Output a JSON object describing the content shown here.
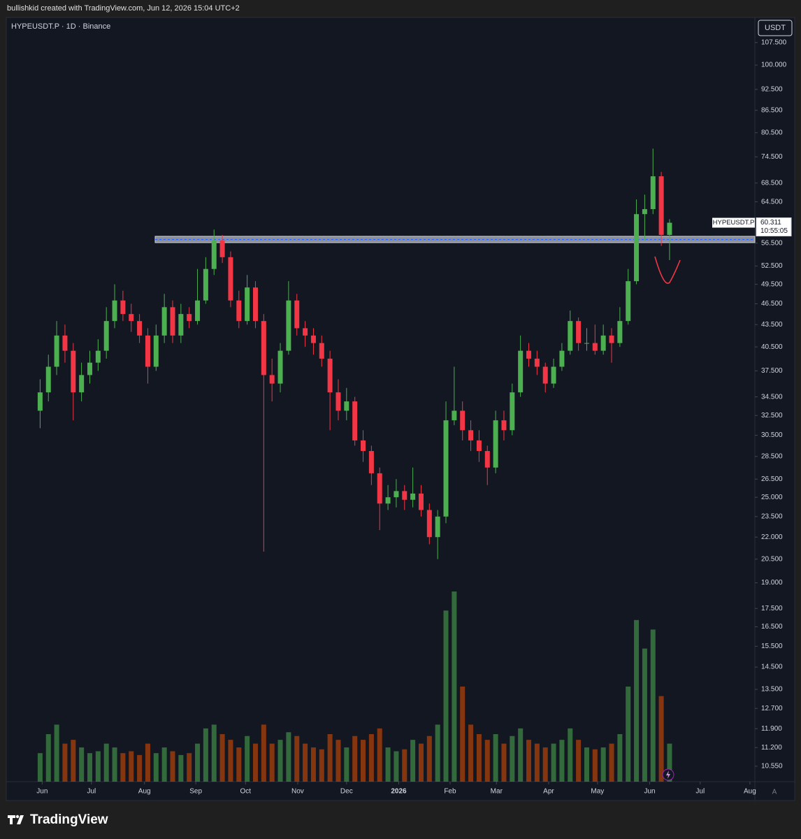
{
  "header": {
    "credit": "bullishkid created with TradingView.com, Jun 12, 2026 15:04 UTC+2"
  },
  "footer": {
    "brand": "TradingView"
  },
  "chart_data": {
    "type": "candlestick",
    "title": "HYPEUSDT.P · 1D · Binance",
    "currency": "USDT",
    "tag_symbol": "HYPEUSDT.P",
    "countdown": "10:55:05",
    "scale_button": "A",
    "up_color": "#4caf50",
    "down_color": "#f23645",
    "log_scale": true,
    "open": [
      33,
      35,
      38,
      42,
      40,
      35,
      37,
      38.5,
      40,
      44,
      47,
      45,
      44,
      42,
      38,
      42,
      46,
      42,
      45,
      44,
      47,
      52,
      57,
      54,
      47,
      44,
      49,
      44,
      37,
      36,
      40,
      47,
      43,
      42,
      41,
      39,
      35,
      33,
      34,
      30,
      29,
      27,
      24.5,
      25,
      25.5,
      24.8,
      25.3,
      24,
      22,
      23.5,
      32,
      33,
      31,
      30,
      29,
      27.5,
      32,
      31,
      35,
      40,
      39,
      38,
      36,
      38,
      40,
      44,
      41,
      41,
      40,
      42,
      41,
      44,
      50,
      62,
      63,
      70,
      58
    ],
    "high": [
      36.5,
      39.5,
      44,
      43.5,
      41,
      38.5,
      40,
      41.5,
      46,
      49.5,
      48.5,
      46.5,
      45,
      43,
      43.5,
      48,
      47,
      46.5,
      46,
      52,
      54,
      59,
      58,
      55,
      48.5,
      51,
      50,
      45,
      39,
      41,
      50,
      48,
      44,
      43,
      42,
      40,
      36.5,
      35.5,
      34.5,
      31,
      29.5,
      27.5,
      26,
      26.5,
      26,
      27.5,
      26,
      24.5,
      24,
      34,
      38,
      34,
      32,
      31,
      29.5,
      33,
      33,
      36,
      42,
      41,
      40,
      38.5,
      39,
      41,
      45.5,
      44.5,
      43,
      43.5,
      43.5,
      43,
      46,
      52,
      65,
      66,
      76.5,
      71,
      61
    ],
    "low": [
      31.2,
      34,
      37,
      38.5,
      32,
      34,
      36,
      37.5,
      39,
      43,
      44,
      42.5,
      41,
      36,
      37.5,
      41,
      41,
      41,
      43,
      43.5,
      46.5,
      51,
      53,
      46,
      43,
      43.5,
      43,
      21,
      34,
      35,
      39.5,
      42,
      40.5,
      39.5,
      38,
      31,
      32,
      32,
      29.5,
      28,
      26,
      22.5,
      24,
      24.2,
      24,
      24.2,
      23.5,
      21.5,
      20.5,
      23,
      31.5,
      30,
      29,
      28,
      26,
      27,
      30,
      30.5,
      34.5,
      38,
      37,
      35,
      35.5,
      37.5,
      39.5,
      40,
      40,
      39.5,
      39.5,
      38.5,
      40.5,
      43.5,
      49.5,
      57,
      62,
      56,
      53.5
    ],
    "close": [
      35,
      38,
      42,
      40,
      35,
      37,
      38.5,
      40,
      44,
      47,
      45,
      44,
      42,
      38,
      42,
      46,
      42,
      45,
      44,
      47,
      52,
      57,
      54,
      47,
      44,
      49,
      44,
      37,
      36,
      40,
      47,
      43,
      42,
      41,
      39,
      35,
      33,
      34,
      30,
      29,
      27,
      24.5,
      25,
      25.5,
      24.8,
      25.3,
      24,
      22,
      23.5,
      32,
      33,
      31,
      30,
      29,
      27.5,
      32,
      31,
      35,
      40,
      39,
      38,
      36,
      38,
      40,
      44,
      41,
      41,
      40,
      42,
      41,
      44,
      50,
      62,
      63,
      70,
      58,
      60.311
    ],
    "volume": [
      15,
      25,
      30,
      20,
      22,
      18,
      15,
      16,
      20,
      18,
      15,
      16,
      14,
      20,
      15,
      18,
      16,
      14,
      15,
      20,
      28,
      30,
      25,
      22,
      18,
      24,
      20,
      30,
      20,
      22,
      26,
      24,
      20,
      18,
      17,
      25,
      22,
      18,
      24,
      22,
      25,
      28,
      18,
      16,
      17,
      22,
      20,
      24,
      30,
      90,
      100,
      50,
      30,
      25,
      22,
      25,
      20,
      24,
      28,
      22,
      20,
      18,
      20,
      22,
      28,
      22,
      18,
      17,
      18,
      20,
      25,
      50,
      85,
      70,
      80,
      45,
      20
    ],
    "ylim": [
      10.04,
      116.5
    ],
    "yticks": [
      {
        "value": 107.5,
        "label": "107.500"
      },
      {
        "value": 100,
        "label": "100.000"
      },
      {
        "value": 92.5,
        "label": "92.500"
      },
      {
        "value": 86.5,
        "label": "86.500"
      },
      {
        "value": 80.5,
        "label": "80.500"
      },
      {
        "value": 74.5,
        "label": "74.500"
      },
      {
        "value": 68.5,
        "label": "68.500"
      },
      {
        "value": 64.5,
        "label": "64.500"
      },
      {
        "value": 56.5,
        "label": "56.500"
      },
      {
        "value": 52.5,
        "label": "52.500"
      },
      {
        "value": 49.5,
        "label": "49.500"
      },
      {
        "value": 46.5,
        "label": "46.500"
      },
      {
        "value": 43.5,
        "label": "43.500"
      },
      {
        "value": 40.5,
        "label": "40.500"
      },
      {
        "value": 37.5,
        "label": "37.500"
      },
      {
        "value": 34.5,
        "label": "34.500"
      },
      {
        "value": 32.5,
        "label": "32.500"
      },
      {
        "value": 30.5,
        "label": "30.500"
      },
      {
        "value": 28.5,
        "label": "28.500"
      },
      {
        "value": 26.5,
        "label": "26.500"
      },
      {
        "value": 25,
        "label": "25.000"
      },
      {
        "value": 23.5,
        "label": "23.500"
      },
      {
        "value": 22,
        "label": "22.000"
      },
      {
        "value": 20.5,
        "label": "20.500"
      },
      {
        "value": 19,
        "label": "19.000"
      },
      {
        "value": 17.5,
        "label": "17.500"
      },
      {
        "value": 16.5,
        "label": "16.500"
      },
      {
        "value": 15.5,
        "label": "15.500"
      },
      {
        "value": 14.5,
        "label": "14.500"
      },
      {
        "value": 13.5,
        "label": "13.500"
      },
      {
        "value": 12.7,
        "label": "12.700"
      },
      {
        "value": 11.9,
        "label": "11.900"
      },
      {
        "value": 11.2,
        "label": "11.200"
      },
      {
        "value": 10.55,
        "label": "10.550"
      }
    ],
    "xlim": [
      -4,
      86.3
    ],
    "xticks": [
      {
        "value": 0.25,
        "label": "Jun"
      },
      {
        "value": 6.2,
        "label": "Jul"
      },
      {
        "value": 12.6,
        "label": "Aug"
      },
      {
        "value": 18.8,
        "label": "Sep"
      },
      {
        "value": 24.8,
        "label": "Oct"
      },
      {
        "value": 31.1,
        "label": "Nov"
      },
      {
        "value": 37.0,
        "label": "Dec"
      },
      {
        "value": 43.3,
        "label": "2026"
      },
      {
        "value": 49.5,
        "label": "Feb"
      },
      {
        "value": 55.1,
        "label": "Mar"
      },
      {
        "value": 61.4,
        "label": "Apr"
      },
      {
        "value": 67.3,
        "label": "May"
      },
      {
        "value": 73.6,
        "label": "Jun"
      },
      {
        "value": 79.7,
        "label": "Jul"
      },
      {
        "value": 85.7,
        "label": "Aug"
      }
    ]
  }
}
